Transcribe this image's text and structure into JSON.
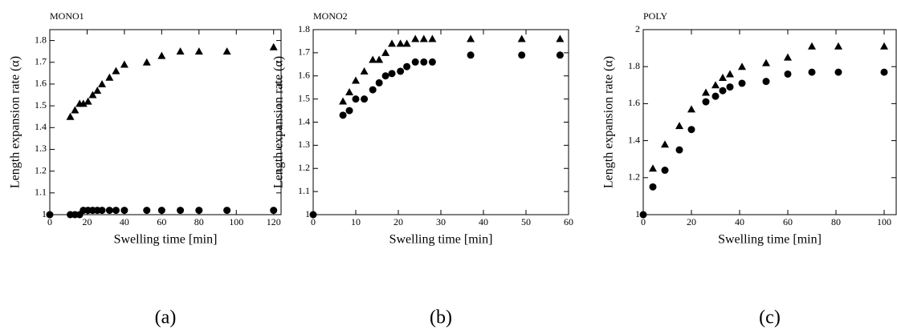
{
  "chart_data": [
    {
      "type": "scatter",
      "title": "MONO1",
      "xlabel": "Swelling time [min]",
      "ylabel": "Length expansion rate (α)",
      "caption": "(a)",
      "xlim": [
        0,
        124
      ],
      "xticks": [
        0,
        20,
        40,
        60,
        80,
        100,
        120
      ],
      "ylim": [
        1,
        1.85
      ],
      "yticks": [
        1,
        1.1,
        1.2,
        1.3,
        1.4,
        1.5,
        1.6,
        1.7,
        1.8
      ],
      "series": [
        {
          "marker": "triangle",
          "color": "#000000",
          "x": [
            11,
            13.5,
            16,
            18,
            20.5,
            23,
            25.5,
            28,
            32,
            35.5,
            40,
            52,
            60,
            70,
            80,
            95,
            120
          ],
          "values": [
            1.45,
            1.48,
            1.51,
            1.51,
            1.52,
            1.55,
            1.57,
            1.6,
            1.63,
            1.66,
            1.69,
            1.7,
            1.73,
            1.75,
            1.75,
            1.75,
            1.77
          ]
        },
        {
          "marker": "circle",
          "color": "#000000",
          "x": [
            0,
            11,
            13.5,
            16,
            18,
            20.5,
            23,
            25.5,
            28,
            32,
            35.5,
            40,
            52,
            60,
            70,
            80,
            95,
            120
          ],
          "values": [
            1,
            1,
            1,
            1,
            1.02,
            1.02,
            1.02,
            1.02,
            1.02,
            1.02,
            1.02,
            1.02,
            1.02,
            1.02,
            1.02,
            1.02,
            1.02,
            1.02
          ]
        }
      ]
    },
    {
      "type": "scatter",
      "title": "MONO2",
      "xlabel": "Swelling time [min]",
      "ylabel": "Length expansion rate (α)",
      "caption": "(b)",
      "xlim": [
        0,
        60
      ],
      "xticks": [
        0,
        10,
        20,
        30,
        40,
        50,
        60
      ],
      "ylim": [
        1,
        1.8
      ],
      "yticks": [
        1,
        1.1,
        1.2,
        1.3,
        1.4,
        1.5,
        1.6,
        1.7,
        1.8
      ],
      "series": [
        {
          "marker": "triangle",
          "color": "#000000",
          "x": [
            7,
            8.5,
            10,
            12,
            14,
            15.5,
            17,
            18.5,
            20.5,
            22,
            24,
            26,
            28,
            37,
            49,
            58
          ],
          "values": [
            1.49,
            1.53,
            1.58,
            1.62,
            1.67,
            1.67,
            1.7,
            1.74,
            1.74,
            1.74,
            1.76,
            1.76,
            1.76,
            1.76,
            1.76,
            1.76
          ]
        },
        {
          "marker": "circle",
          "color": "#000000",
          "x": [
            0,
            7,
            8.5,
            10,
            12,
            14,
            15.5,
            17,
            18.5,
            20.5,
            22,
            24,
            26,
            28,
            37,
            49,
            58
          ],
          "values": [
            1,
            1.43,
            1.45,
            1.5,
            1.5,
            1.54,
            1.57,
            1.6,
            1.61,
            1.62,
            1.64,
            1.66,
            1.66,
            1.66,
            1.69,
            1.69,
            1.69
          ]
        }
      ]
    },
    {
      "type": "scatter",
      "title": "POLY",
      "xlabel": "Swelling time [min]",
      "ylabel": "Length expansion rate (α)",
      "caption": "(c)",
      "xlim": [
        0,
        105
      ],
      "xticks": [
        0,
        20,
        40,
        60,
        80,
        100
      ],
      "ylim": [
        1,
        2
      ],
      "yticks": [
        1,
        1.2,
        1.4,
        1.6,
        1.8,
        2
      ],
      "series": [
        {
          "marker": "triangle",
          "color": "#000000",
          "x": [
            4,
            9,
            15,
            20,
            26,
            30,
            33,
            36,
            41,
            51,
            60,
            70,
            81,
            100
          ],
          "values": [
            1.25,
            1.38,
            1.48,
            1.57,
            1.66,
            1.7,
            1.74,
            1.76,
            1.8,
            1.82,
            1.85,
            1.91,
            1.91,
            1.91
          ]
        },
        {
          "marker": "circle",
          "color": "#000000",
          "x": [
            0,
            4,
            9,
            15,
            20,
            26,
            30,
            33,
            36,
            41,
            51,
            60,
            70,
            81,
            100
          ],
          "values": [
            1,
            1.15,
            1.24,
            1.35,
            1.46,
            1.61,
            1.64,
            1.67,
            1.69,
            1.71,
            1.72,
            1.76,
            1.77,
            1.77,
            1.77
          ]
        }
      ]
    }
  ]
}
